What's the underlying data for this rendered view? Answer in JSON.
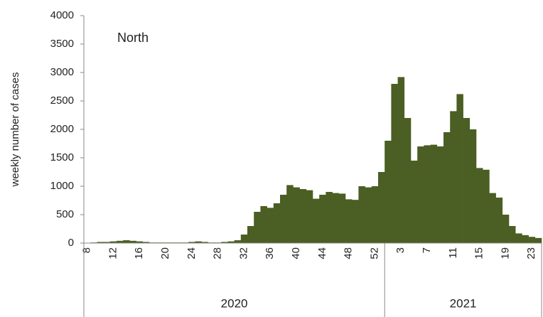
{
  "chart_data": {
    "type": "bar",
    "annotation": "North",
    "y_label": "weekly number of cases",
    "color": "#4b5e23",
    "categories": [
      "8",
      null,
      null,
      null,
      "12",
      null,
      null,
      null,
      "16",
      null,
      null,
      null,
      "20",
      null,
      null,
      null,
      "24",
      null,
      null,
      null,
      "28",
      null,
      null,
      null,
      "32",
      null,
      null,
      null,
      "36",
      null,
      null,
      null,
      "40",
      null,
      null,
      null,
      "44",
      null,
      null,
      null,
      "48",
      null,
      null,
      null,
      "52",
      null,
      null,
      null,
      "3",
      null,
      null,
      null,
      "7",
      null,
      null,
      null,
      "11",
      null,
      null,
      null,
      "15",
      null,
      null,
      null,
      "19",
      null,
      null,
      null,
      "23",
      null
    ],
    "values": [
      0,
      10,
      20,
      20,
      30,
      40,
      50,
      40,
      30,
      20,
      10,
      10,
      10,
      10,
      10,
      10,
      20,
      30,
      20,
      10,
      10,
      20,
      30,
      50,
      150,
      300,
      550,
      650,
      620,
      700,
      850,
      1020,
      980,
      950,
      930,
      780,
      850,
      900,
      880,
      870,
      770,
      760,
      1000,
      980,
      1000,
      1250,
      1800,
      2800,
      2920,
      2200,
      1450,
      1700,
      1720,
      1730,
      1700,
      1950,
      2320,
      2620,
      2200,
      2000,
      1320,
      1290,
      880,
      800,
      500,
      300,
      170,
      140,
      110,
      90
    ],
    "x_groups": [
      "2020",
      "2021"
    ],
    "ylim": [
      0,
      4000
    ],
    "yticks": [
      0,
      500,
      1000,
      1500,
      2000,
      2500,
      3000,
      3500,
      4000
    ]
  }
}
